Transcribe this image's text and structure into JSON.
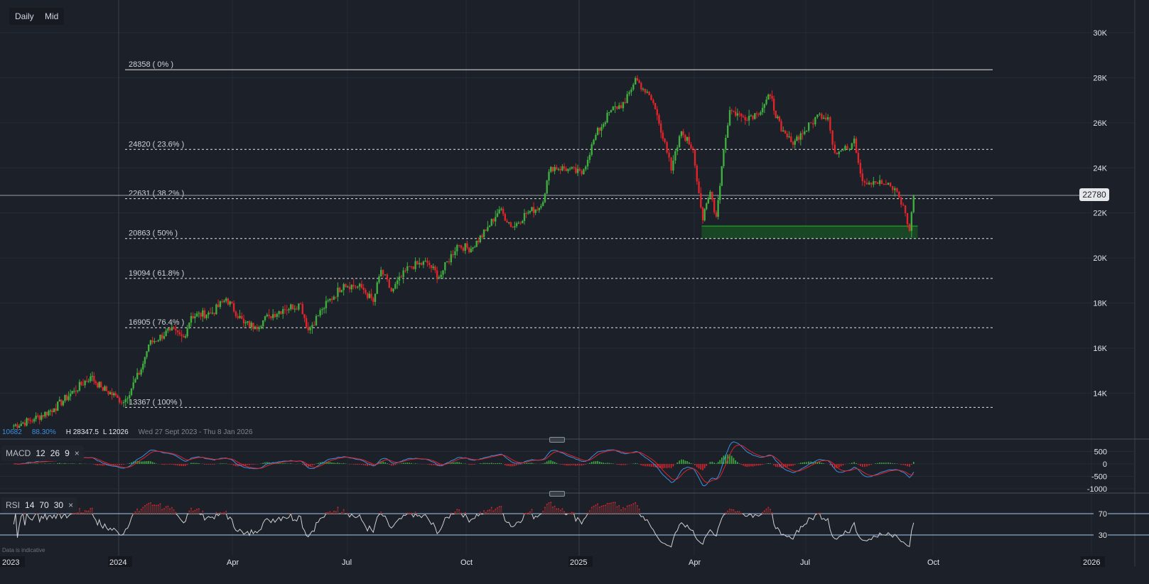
{
  "toolbar": {
    "interval_label": "Daily",
    "price_type_label": "Mid"
  },
  "info_bar": {
    "value": "10682",
    "percent": "88.30%",
    "high": "H 28347.5",
    "low": "L 12026",
    "range": "Wed 27 Sept 2023 - Thu 8 Jan 2026"
  },
  "macd_legend": {
    "name": "MACD",
    "p1": "12",
    "p2": "26",
    "p3": "9",
    "close": "×"
  },
  "rsi_legend": {
    "name": "RSI",
    "p1": "14",
    "p2": "70",
    "p3": "30",
    "close": "×"
  },
  "current_price": "22780",
  "footnote": "Data is indicative",
  "colors": {
    "background": "#1b2029",
    "up": "#3fae3f",
    "down": "#e0242a",
    "zone": "#1a4a25",
    "macd": "#3d8fe0",
    "signal": "#e0242a",
    "rsi": "#d0d0d0"
  },
  "chart_data": {
    "type": "candlestick",
    "y_axis": {
      "ticks": [
        "14K",
        "16K",
        "18K",
        "20K",
        "22K",
        "24K",
        "26K",
        "28K",
        "30K"
      ],
      "tick_values": [
        14000,
        16000,
        18000,
        20000,
        22000,
        24000,
        26000,
        28000,
        30000
      ],
      "ylim": [
        12000,
        30500
      ]
    },
    "x_axis": {
      "ticks": [
        "2023",
        "2024",
        "Apr",
        "Jul",
        "Oct",
        "2025",
        "Apr",
        "Jul",
        "Oct",
        "2026"
      ],
      "tick_dates": [
        "2023-10-01",
        "2024-01-01",
        "2024-04-01",
        "2024-07-01",
        "2024-10-01",
        "2025-01-01",
        "2025-04-01",
        "2025-07-01",
        "2025-10-01",
        "2026-01-01"
      ]
    },
    "grid": true,
    "closes": [
      [
        "2023-10-02",
        12530
      ],
      [
        "2023-10-21",
        12850
      ],
      [
        "2023-11-07",
        13320
      ],
      [
        "2023-11-24",
        14100
      ],
      [
        "2023-12-08",
        14740
      ],
      [
        "2023-12-17",
        14260
      ],
      [
        "2023-12-31",
        13790
      ],
      [
        "2024-01-05",
        13600
      ],
      [
        "2024-01-19",
        15050
      ],
      [
        "2024-01-25",
        16160
      ],
      [
        "2024-02-11",
        16790
      ],
      [
        "2024-02-22",
        16470
      ],
      [
        "2024-02-28",
        17420
      ],
      [
        "2024-03-16",
        17570
      ],
      [
        "2024-03-27",
        18200
      ],
      [
        "2024-04-10",
        17100
      ],
      [
        "2024-04-19",
        16950
      ],
      [
        "2024-04-30",
        17420
      ],
      [
        "2024-05-11",
        17730
      ],
      [
        "2024-05-25",
        17950
      ],
      [
        "2024-05-31",
        16790
      ],
      [
        "2024-06-11",
        17730
      ],
      [
        "2024-06-28",
        18840
      ],
      [
        "2024-07-12",
        18680
      ],
      [
        "2024-07-21",
        18050
      ],
      [
        "2024-07-27",
        19470
      ],
      [
        "2024-08-04",
        18520
      ],
      [
        "2024-08-18",
        19630
      ],
      [
        "2024-09-01",
        19790
      ],
      [
        "2024-09-10",
        19150
      ],
      [
        "2024-09-24",
        20570
      ],
      [
        "2024-10-05",
        20410
      ],
      [
        "2024-10-17",
        21200
      ],
      [
        "2024-10-28",
        22150
      ],
      [
        "2024-11-08",
        21360
      ],
      [
        "2024-11-19",
        21990
      ],
      [
        "2024-12-01",
        22310
      ],
      [
        "2024-12-09",
        24040
      ],
      [
        "2024-12-23",
        23950
      ],
      [
        "2025-01-03",
        23720
      ],
      [
        "2025-01-14",
        25460
      ],
      [
        "2025-01-26",
        26560
      ],
      [
        "2025-02-06",
        26880
      ],
      [
        "2025-02-14",
        27980
      ],
      [
        "2025-02-20",
        27510
      ],
      [
        "2025-02-28",
        26880
      ],
      [
        "2025-03-09",
        25140
      ],
      [
        "2025-03-14",
        23880
      ],
      [
        "2025-03-22",
        25620
      ],
      [
        "2025-03-31",
        24830
      ],
      [
        "2025-04-08",
        21670
      ],
      [
        "2025-04-14",
        22940
      ],
      [
        "2025-04-19",
        21830
      ],
      [
        "2025-04-25",
        24830
      ],
      [
        "2025-04-30",
        26560
      ],
      [
        "2025-05-11",
        26250
      ],
      [
        "2025-05-22",
        26400
      ],
      [
        "2025-06-02",
        27190
      ],
      [
        "2025-06-11",
        25620
      ],
      [
        "2025-06-19",
        25140
      ],
      [
        "2025-06-30",
        25620
      ],
      [
        "2025-07-11",
        26400
      ],
      [
        "2025-07-17",
        26250
      ],
      [
        "2025-07-22",
        24670
      ],
      [
        "2025-07-31",
        24830
      ],
      [
        "2025-08-05",
        25300
      ],
      [
        "2025-08-11",
        23410
      ],
      [
        "2025-08-19",
        23410
      ],
      [
        "2025-08-28",
        23250
      ],
      [
        "2025-09-05",
        22940
      ],
      [
        "2025-09-11",
        21990
      ],
      [
        "2025-09-14",
        21200
      ],
      [
        "2025-09-17",
        22780
      ]
    ],
    "fib_levels": [
      {
        "label": "28358 ( 0% )",
        "value": 28358
      },
      {
        "label": "24820 ( 23.6% )",
        "value": 24820
      },
      {
        "label": "22631 ( 38.2% )",
        "value": 22631
      },
      {
        "label": "20863 ( 50% )",
        "value": 20863
      },
      {
        "label": "19094 ( 61.8% )",
        "value": 19094
      },
      {
        "label": "16905 ( 76.4% )",
        "value": 16905
      },
      {
        "label": "13367 ( 100% )",
        "value": 13367
      }
    ],
    "support_zone": {
      "from_date": "2025-04-07",
      "to_date": "2025-09-20",
      "low": 20863,
      "high": 21420
    },
    "macd_axis": {
      "ticks": [
        "500",
        "0",
        "-500",
        "-1000"
      ],
      "tick_values": [
        500,
        0,
        -500,
        -1000
      ]
    },
    "rsi_axis": {
      "ticks": [
        "70",
        "30"
      ],
      "tick_values": [
        70,
        30
      ]
    }
  }
}
